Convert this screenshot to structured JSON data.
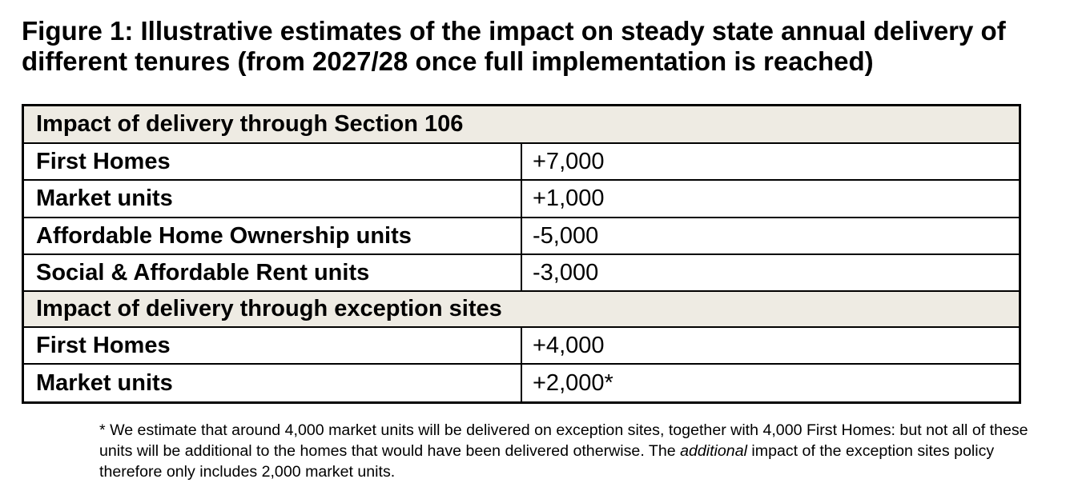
{
  "title": "Figure 1: Illustrative estimates of the impact on steady state annual delivery of different tenures (from 2027/28 once full implementation is reached)",
  "table": {
    "sections": [
      {
        "heading": "Impact of delivery through Section 106",
        "rows": [
          {
            "label": "First Homes",
            "value": "+7,000"
          },
          {
            "label": "Market units",
            "value": "+1,000"
          },
          {
            "label": "Affordable Home Ownership units",
            "value": "-5,000"
          },
          {
            "label": "Social & Affordable Rent units",
            "value": "-3,000"
          }
        ]
      },
      {
        "heading": "Impact of delivery through exception sites",
        "rows": [
          {
            "label": "First Homes",
            "value": "+4,000"
          },
          {
            "label": "Market units",
            "value": "+2,000*"
          }
        ]
      }
    ],
    "header_color": "#eeebe3"
  },
  "footnote": {
    "before": "* We estimate that around 4,000 market units will be delivered on exception sites, together with 4,000 First Homes: but not all of these units will be additional to the homes that would have been delivered otherwise. The ",
    "emphasis": "additional",
    "after": " impact of the exception sites policy therefore only includes 2,000 market units."
  }
}
